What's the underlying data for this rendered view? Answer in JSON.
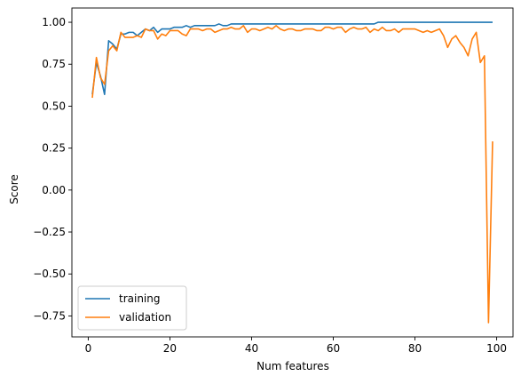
{
  "chart_data": {
    "type": "line",
    "title": "",
    "xlabel": "Num features",
    "ylabel": "Score",
    "xlim": [
      -4,
      104
    ],
    "ylim": [
      -0.875,
      1.085
    ],
    "x_ticks": [
      0,
      20,
      40,
      60,
      80,
      100
    ],
    "y_ticks": [
      -0.75,
      -0.5,
      -0.25,
      0.0,
      0.25,
      0.5,
      0.75,
      1.0
    ],
    "x_tick_labels": [
      "0",
      "20",
      "40",
      "60",
      "80",
      "100"
    ],
    "y_tick_labels": [
      "−0.75",
      "−0.50",
      "−0.25",
      "0.00",
      "0.25",
      "0.50",
      "0.75",
      "1.00"
    ],
    "grid": false,
    "legend_position": "lower-left",
    "x": [
      1,
      2,
      3,
      4,
      5,
      6,
      7,
      8,
      9,
      10,
      11,
      12,
      13,
      14,
      15,
      16,
      17,
      18,
      19,
      20,
      21,
      22,
      23,
      24,
      25,
      26,
      27,
      28,
      29,
      30,
      31,
      32,
      33,
      34,
      35,
      36,
      37,
      38,
      39,
      40,
      41,
      42,
      43,
      44,
      45,
      46,
      47,
      48,
      49,
      50,
      51,
      52,
      53,
      54,
      55,
      56,
      57,
      58,
      59,
      60,
      61,
      62,
      63,
      64,
      65,
      66,
      67,
      68,
      69,
      70,
      71,
      72,
      73,
      74,
      75,
      76,
      77,
      78,
      79,
      80,
      81,
      82,
      83,
      84,
      85,
      86,
      87,
      88,
      89,
      90,
      91,
      92,
      93,
      94,
      95,
      96,
      97,
      98,
      99
    ],
    "series": [
      {
        "name": "training",
        "color": "#1f77b4",
        "values": [
          0.57,
          0.76,
          0.68,
          0.57,
          0.89,
          0.87,
          0.84,
          0.93,
          0.93,
          0.94,
          0.94,
          0.92,
          0.94,
          0.96,
          0.95,
          0.97,
          0.94,
          0.96,
          0.96,
          0.96,
          0.97,
          0.97,
          0.97,
          0.98,
          0.97,
          0.98,
          0.98,
          0.98,
          0.98,
          0.98,
          0.98,
          0.99,
          0.98,
          0.98,
          0.99,
          0.99,
          0.99,
          0.99,
          0.99,
          0.99,
          0.99,
          0.99,
          0.99,
          0.99,
          0.99,
          0.99,
          0.99,
          0.99,
          0.99,
          0.99,
          0.99,
          0.99,
          0.99,
          0.99,
          0.99,
          0.99,
          0.99,
          0.99,
          0.99,
          0.99,
          0.99,
          0.99,
          0.99,
          0.99,
          0.99,
          0.99,
          0.99,
          0.99,
          0.99,
          0.99,
          1.0,
          1.0,
          1.0,
          1.0,
          1.0,
          1.0,
          1.0,
          1.0,
          1.0,
          1.0,
          1.0,
          1.0,
          1.0,
          1.0,
          1.0,
          1.0,
          1.0,
          1.0,
          1.0,
          1.0,
          1.0,
          1.0,
          1.0,
          1.0,
          1.0,
          1.0,
          1.0,
          1.0,
          1.0
        ]
      },
      {
        "name": "validation",
        "color": "#ff7f0e",
        "values": [
          0.55,
          0.79,
          0.67,
          0.63,
          0.83,
          0.86,
          0.83,
          0.94,
          0.91,
          0.91,
          0.91,
          0.92,
          0.91,
          0.96,
          0.95,
          0.95,
          0.9,
          0.93,
          0.92,
          0.95,
          0.95,
          0.95,
          0.93,
          0.92,
          0.96,
          0.96,
          0.96,
          0.95,
          0.96,
          0.96,
          0.94,
          0.95,
          0.96,
          0.96,
          0.97,
          0.96,
          0.96,
          0.98,
          0.94,
          0.96,
          0.96,
          0.95,
          0.96,
          0.97,
          0.96,
          0.98,
          0.96,
          0.95,
          0.96,
          0.96,
          0.95,
          0.95,
          0.96,
          0.96,
          0.96,
          0.95,
          0.95,
          0.97,
          0.97,
          0.96,
          0.97,
          0.97,
          0.94,
          0.96,
          0.97,
          0.96,
          0.96,
          0.97,
          0.94,
          0.96,
          0.95,
          0.97,
          0.95,
          0.95,
          0.96,
          0.94,
          0.96,
          0.96,
          0.96,
          0.96,
          0.95,
          0.94,
          0.95,
          0.94,
          0.95,
          0.96,
          0.92,
          0.85,
          0.9,
          0.92,
          0.88,
          0.85,
          0.8,
          0.9,
          0.94,
          0.76,
          0.8,
          -0.79,
          0.29
        ]
      }
    ]
  }
}
